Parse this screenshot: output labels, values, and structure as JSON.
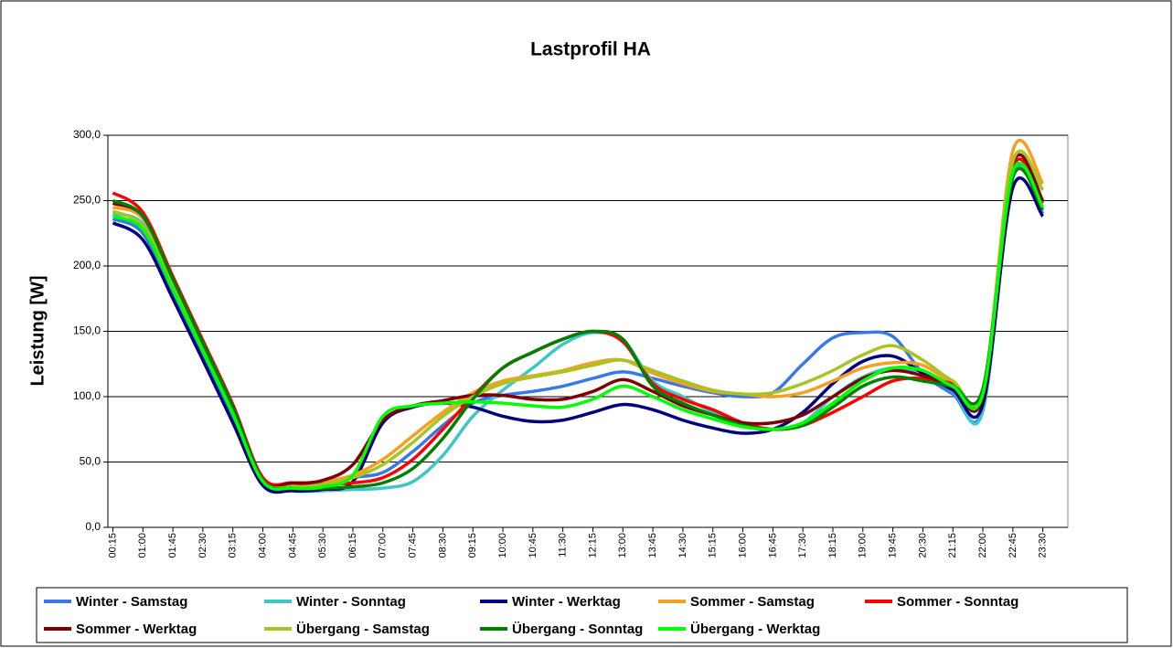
{
  "chart_data": {
    "type": "line",
    "title": "Lastprofil HA",
    "y_label": "Leistung [W]",
    "categories": [
      "00:15",
      "01:00",
      "01:45",
      "02:30",
      "03:15",
      "04:00",
      "04:45",
      "05:30",
      "06:15",
      "07:00",
      "07:45",
      "08:30",
      "09:15",
      "10:00",
      "10:45",
      "11:30",
      "12:15",
      "13:00",
      "13:45",
      "14:30",
      "15:15",
      "16:00",
      "16:45",
      "17:30",
      "18:15",
      "19:00",
      "19:45",
      "20:30",
      "21:15",
      "22:00",
      "22:45",
      "23:30"
    ],
    "ylim": [
      0,
      300
    ],
    "yticks": [
      {
        "value": 0,
        "label": "0,0"
      },
      {
        "value": 50,
        "label": "50,0"
      },
      {
        "value": 100,
        "label": "100,0"
      },
      {
        "value": 150,
        "label": "150,0"
      },
      {
        "value": 200,
        "label": "200,0"
      },
      {
        "value": 250,
        "label": "250,0"
      },
      {
        "value": 300,
        "label": "300,0"
      }
    ],
    "grid": true,
    "legend": "bottom",
    "series": [
      {
        "name": "Winter - Samstag",
        "color": "#3a78e8",
        "values": [
          236,
          225,
          178,
          130,
          83,
          35,
          30,
          32,
          38,
          42,
          58,
          78,
          95,
          101,
          104,
          108,
          114,
          119,
          114,
          108,
          103,
          100,
          103,
          125,
          145,
          149,
          146,
          118,
          102,
          91,
          270,
          240
        ]
      },
      {
        "name": "Winter - Sonntag",
        "color": "#3cc8c8",
        "values": [
          240,
          232,
          185,
          137,
          88,
          34,
          28,
          28,
          29,
          30,
          35,
          55,
          85,
          105,
          122,
          140,
          149,
          143,
          112,
          100,
          88,
          78,
          75,
          80,
          100,
          115,
          122,
          118,
          104,
          89,
          268,
          242
        ]
      },
      {
        "name": "Winter - Werktag",
        "color": "#000080",
        "values": [
          233,
          220,
          175,
          128,
          80,
          32,
          28,
          29,
          35,
          80,
          92,
          95,
          92,
          85,
          81,
          82,
          88,
          94,
          90,
          82,
          76,
          72,
          75,
          88,
          110,
          127,
          131,
          118,
          105,
          94,
          260,
          238
        ]
      },
      {
        "name": "Sommer - Samstag",
        "color": "#f5a020",
        "values": [
          245,
          236,
          188,
          140,
          90,
          38,
          33,
          35,
          40,
          52,
          70,
          88,
          103,
          112,
          116,
          120,
          126,
          128,
          118,
          110,
          104,
          102,
          100,
          103,
          112,
          122,
          126,
          124,
          110,
          102,
          288,
          263
        ]
      },
      {
        "name": "Sommer - Sonntag",
        "color": "#ff0000",
        "values": [
          256,
          241,
          192,
          143,
          94,
          38,
          34,
          33,
          34,
          38,
          52,
          75,
          100,
          122,
          134,
          144,
          150,
          142,
          110,
          98,
          90,
          80,
          75,
          78,
          88,
          100,
          112,
          114,
          110,
          104,
          275,
          248
        ]
      },
      {
        "name": "Sommer - Werktag",
        "color": "#800000",
        "values": [
          248,
          238,
          190,
          141,
          92,
          36,
          34,
          36,
          48,
          82,
          93,
          97,
          101,
          101,
          98,
          98,
          104,
          113,
          104,
          93,
          86,
          80,
          80,
          86,
          100,
          114,
          120,
          116,
          108,
          100,
          278,
          250
        ]
      },
      {
        "name": "Übergang - Samstag",
        "color": "#a8c424",
        "values": [
          242,
          230,
          184,
          137,
          90,
          36,
          31,
          33,
          38,
          48,
          65,
          85,
          100,
          110,
          115,
          119,
          124,
          128,
          120,
          112,
          105,
          102,
          103,
          110,
          120,
          132,
          139,
          128,
          112,
          105,
          280,
          258
        ]
      },
      {
        "name": "Übergang - Sonntag",
        "color": "#008000",
        "values": [
          250,
          238,
          190,
          141,
          92,
          36,
          30,
          30,
          31,
          34,
          45,
          68,
          98,
          122,
          134,
          144,
          150,
          144,
          108,
          95,
          86,
          78,
          75,
          78,
          92,
          108,
          115,
          112,
          108,
          106,
          268,
          243
        ]
      },
      {
        "name": "Übergang - Werktag",
        "color": "#00ff00",
        "values": [
          238,
          228,
          182,
          135,
          87,
          35,
          30,
          31,
          40,
          85,
          93,
          95,
          96,
          95,
          93,
          92,
          98,
          108,
          100,
          90,
          83,
          77,
          75,
          80,
          95,
          112,
          122,
          120,
          108,
          102,
          272,
          245
        ]
      }
    ]
  }
}
